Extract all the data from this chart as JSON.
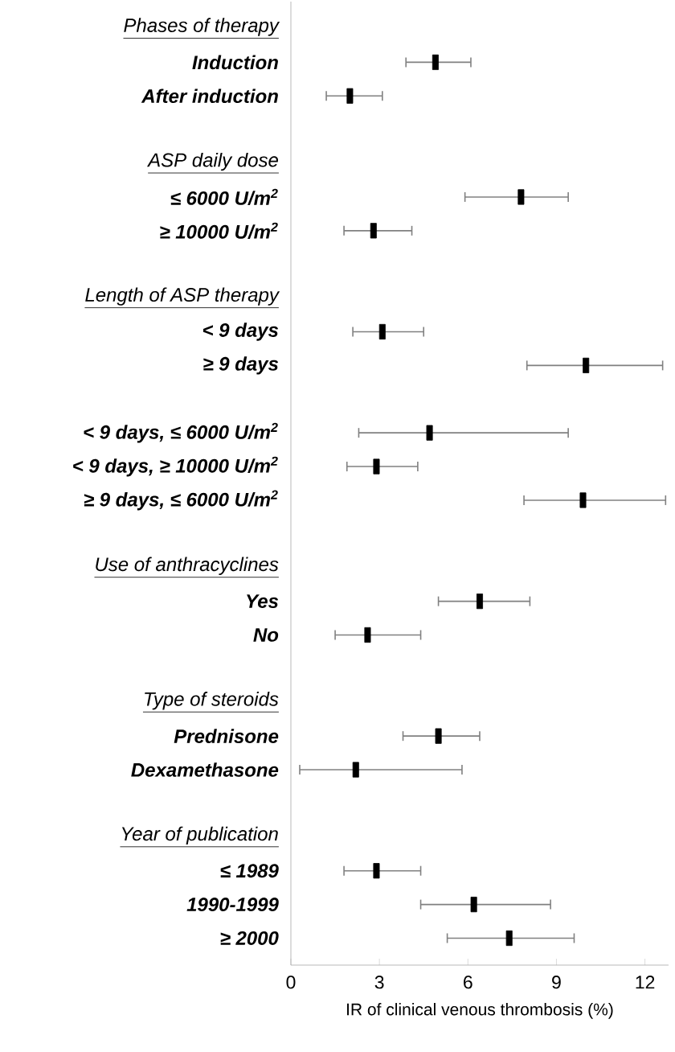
{
  "chart_data": {
    "type": "scatter",
    "orientation": "horizontal",
    "xlabel": "IR of clinical venous thrombosis (%)",
    "categories": [
      "Phases of therapy",
      "Induction",
      "After induction",
      null,
      "ASP daily dose",
      "≤ 6000 U/m$^{2}$",
      "≥ 10000 U/m$^{2}$",
      null,
      "Length of ASP therapy",
      "< 9 days",
      "≥ 9 days",
      null,
      "< 9 days, ≤ 6000 U/m$^{2}$",
      "< 9 days, ≥ 10000 U/m$^{2}$",
      "≥ 9 days, ≤ 6000 U/m$^{2}$",
      null,
      "Use of anthracyclines",
      "Yes",
      "No",
      null,
      "Type of steroids",
      "Prednisone",
      "Dexamethasone",
      null,
      "Year of publication",
      "≤ 1989",
      "1990-1999",
      "≥ 2000"
    ],
    "values": [
      null,
      4.9,
      2.0,
      null,
      null,
      7.8,
      2.8,
      null,
      null,
      3.1,
      10.0,
      null,
      4.7,
      2.9,
      9.9,
      null,
      null,
      6.4,
      2.6,
      null,
      null,
      5.0,
      2.2,
      null,
      null,
      2.9,
      6.2,
      7.4
    ],
    "errors": [
      null,
      [
        3.9,
        6.1
      ],
      [
        1.2,
        3.1
      ],
      null,
      null,
      [
        5.9,
        9.4
      ],
      [
        1.8,
        4.1
      ],
      null,
      null,
      [
        2.1,
        4.5
      ],
      [
        8.0,
        12.6
      ],
      null,
      [
        2.3,
        9.4
      ],
      [
        1.9,
        4.3
      ],
      [
        7.9,
        12.7
      ],
      null,
      null,
      [
        5.0,
        8.1
      ],
      [
        1.5,
        4.4
      ],
      null,
      null,
      [
        3.8,
        6.4
      ],
      [
        0.3,
        5.8
      ],
      null,
      null,
      [
        1.8,
        4.4
      ],
      [
        4.4,
        8.8
      ],
      [
        5.3,
        9.6
      ]
    ],
    "color": "#000000",
    "marker": "square",
    "xlim": [
      0,
      12.8
    ],
    "xticks": [
      0,
      3,
      6,
      9,
      12
    ]
  }
}
